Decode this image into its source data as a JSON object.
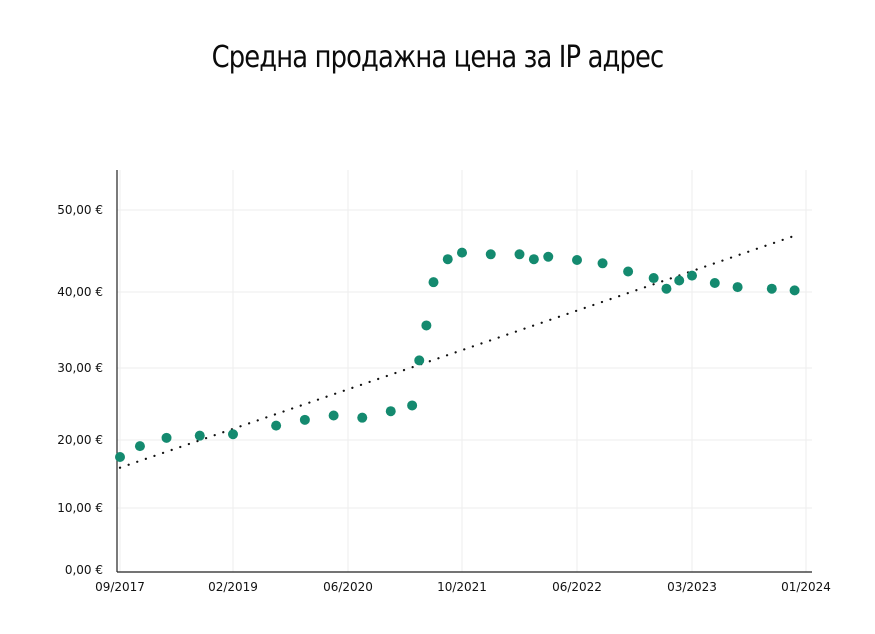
{
  "chart_data": {
    "type": "scatter",
    "title": "Средна продажна цена за IP адрес",
    "xlabel": "",
    "ylabel": "",
    "x_ticks": [
      "09/2017",
      "02/2019",
      "06/2020",
      "10/2021",
      "06/2022",
      "03/2023",
      "01/2024"
    ],
    "y_ticks": [
      "0,00 €",
      "10,00 €",
      "20,00 €",
      "30,00 €",
      "40,00 €",
      "50,00 €"
    ],
    "y_tick_values": [
      0,
      10,
      20,
      30,
      40,
      50
    ],
    "y_scale": "irregular (tick spacing uneven as shown)",
    "x_scale": "irregular (tick spacing uneven as shown)",
    "grid": true,
    "legend": "none",
    "trendline": "linear, dotted, black",
    "colors": {
      "points": "#148a6f",
      "trendline": "#111111",
      "axes": "#222222",
      "grid": "#eeeeee"
    },
    "series": [
      {
        "points": [
          {
            "x": "09/2017",
            "y": 17.5
          },
          {
            "x": "12/2017",
            "y": 19.1
          },
          {
            "x": "04/2018",
            "y": 20.3
          },
          {
            "x": "09/2018",
            "y": 20.6
          },
          {
            "x": "02/2019",
            "y": 20.8
          },
          {
            "x": "08/2019",
            "y": 22.0
          },
          {
            "x": "12/2019",
            "y": 22.8
          },
          {
            "x": "04/2020",
            "y": 23.4
          },
          {
            "x": "08/2020",
            "y": 23.1
          },
          {
            "x": "12/2020",
            "y": 24.0
          },
          {
            "x": "03/2021",
            "y": 24.8
          },
          {
            "x": "04/2021",
            "y": 31.0
          },
          {
            "x": "05/2021",
            "y": 35.6
          },
          {
            "x": "06/2021",
            "y": 41.2
          },
          {
            "x": "08/2021",
            "y": 44.0
          },
          {
            "x": "10/2021",
            "y": 44.8
          },
          {
            "x": "12/2021",
            "y": 44.6
          },
          {
            "x": "02/2022",
            "y": 44.6
          },
          {
            "x": "03/2022",
            "y": 44.0
          },
          {
            "x": "04/2022",
            "y": 44.3
          },
          {
            "x": "06/2022",
            "y": 43.9
          },
          {
            "x": "08/2022",
            "y": 43.5
          },
          {
            "x": "10/2022",
            "y": 42.5
          },
          {
            "x": "12/2022",
            "y": 41.7
          },
          {
            "x": "01/2023",
            "y": 40.4
          },
          {
            "x": "02/2023",
            "y": 41.4
          },
          {
            "x": "03/2023",
            "y": 42.0
          },
          {
            "x": "05/2023",
            "y": 41.1
          },
          {
            "x": "07/2023",
            "y": 40.6
          },
          {
            "x": "10/2023",
            "y": 40.4
          },
          {
            "x": "12/2023",
            "y": 40.2
          }
        ]
      }
    ]
  }
}
